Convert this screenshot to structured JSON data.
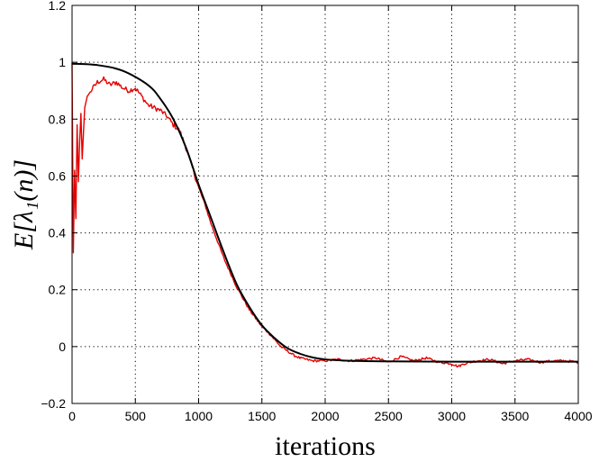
{
  "chart_data": {
    "type": "line",
    "title": "",
    "xlabel": "iterations",
    "ylabel": "E[λ₁(n)]",
    "xlim": [
      0,
      4000
    ],
    "ylim": [
      -0.2,
      1.2
    ],
    "xticks": [
      0,
      500,
      1000,
      1500,
      2000,
      2500,
      3000,
      3500,
      4000
    ],
    "yticks": [
      -0.2,
      0,
      0.2,
      0.4,
      0.6,
      0.8,
      1,
      1.2
    ],
    "xtick_labels": [
      "0",
      "500",
      "1000",
      "1500",
      "2000",
      "2500",
      "3000",
      "3500",
      "4000"
    ],
    "ytick_labels": [
      "−0.2",
      "0",
      "0.2",
      "0.4",
      "0.6",
      "0.8",
      "1",
      "1.2"
    ],
    "grid": true,
    "legend": "none",
    "series": [
      {
        "color": "#000000",
        "style": "smooth",
        "x": [
          0,
          200,
          400,
          600,
          700,
          800,
          900,
          1000,
          1100,
          1200,
          1300,
          1400,
          1500,
          1600,
          1700,
          1800,
          1900,
          2000,
          2200,
          2500,
          3000,
          3500,
          4000
        ],
        "y": [
          0.995,
          0.99,
          0.97,
          0.92,
          0.87,
          0.8,
          0.7,
          0.57,
          0.45,
          0.33,
          0.22,
          0.14,
          0.075,
          0.03,
          -0.005,
          -0.025,
          -0.038,
          -0.045,
          -0.05,
          -0.052,
          -0.053,
          -0.053,
          -0.053
        ]
      },
      {
        "color": "#e60000",
        "style": "noisy",
        "x": [
          0,
          10,
          20,
          30,
          40,
          50,
          60,
          70,
          80,
          100,
          120,
          150,
          200,
          250,
          300,
          350,
          400,
          450,
          500,
          550,
          600,
          650,
          700,
          750,
          800,
          850,
          900,
          950,
          1000,
          1050,
          1100,
          1150,
          1200,
          1250,
          1300,
          1350,
          1400,
          1450,
          1500,
          1550,
          1600,
          1650,
          1700,
          1750,
          1800,
          1850,
          1900,
          1950,
          2000,
          2100,
          2200,
          2300,
          2400,
          2500,
          2600,
          2700,
          2800,
          2900,
          3000,
          3050,
          3100,
          3200,
          3300,
          3400,
          3500,
          3600,
          3700,
          3800,
          3900,
          4000
        ],
        "y": [
          1.0,
          0.33,
          0.62,
          0.45,
          0.78,
          0.58,
          0.72,
          0.82,
          0.66,
          0.84,
          0.88,
          0.9,
          0.93,
          0.94,
          0.92,
          0.93,
          0.91,
          0.9,
          0.91,
          0.88,
          0.85,
          0.84,
          0.83,
          0.81,
          0.78,
          0.76,
          0.7,
          0.63,
          0.56,
          0.5,
          0.43,
          0.37,
          0.31,
          0.26,
          0.21,
          0.17,
          0.13,
          0.1,
          0.07,
          0.05,
          0.025,
          0.0,
          -0.015,
          -0.03,
          -0.04,
          -0.045,
          -0.05,
          -0.05,
          -0.05,
          -0.045,
          -0.05,
          -0.045,
          -0.04,
          -0.055,
          -0.035,
          -0.05,
          -0.04,
          -0.055,
          -0.06,
          -0.07,
          -0.06,
          -0.05,
          -0.045,
          -0.06,
          -0.05,
          -0.045,
          -0.055,
          -0.05,
          -0.05,
          -0.055
        ]
      }
    ]
  }
}
